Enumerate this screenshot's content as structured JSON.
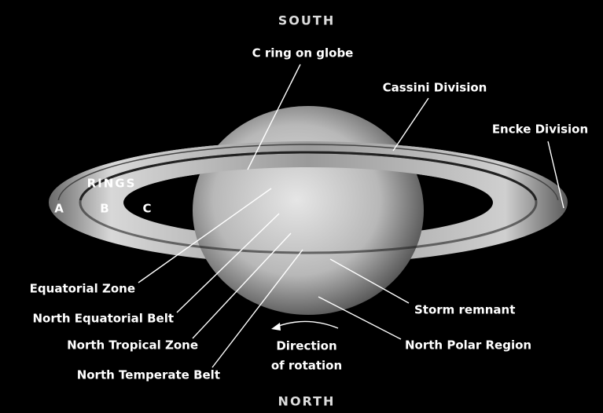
{
  "orientation": {
    "top": "SOUTH",
    "bottom": "NORTH"
  },
  "rings": {
    "title": "RINGS",
    "labels": [
      "A",
      "B",
      "C"
    ]
  },
  "features": [
    "C ring on globe",
    "Cassini Division",
    "Encke Division",
    "Equatorial Zone",
    "North Equatorial Belt",
    "North Tropical Zone",
    "North Temperate Belt",
    "Storm remnant",
    "North Polar Region"
  ],
  "rotation": [
    "Direction",
    "of rotation"
  ]
}
